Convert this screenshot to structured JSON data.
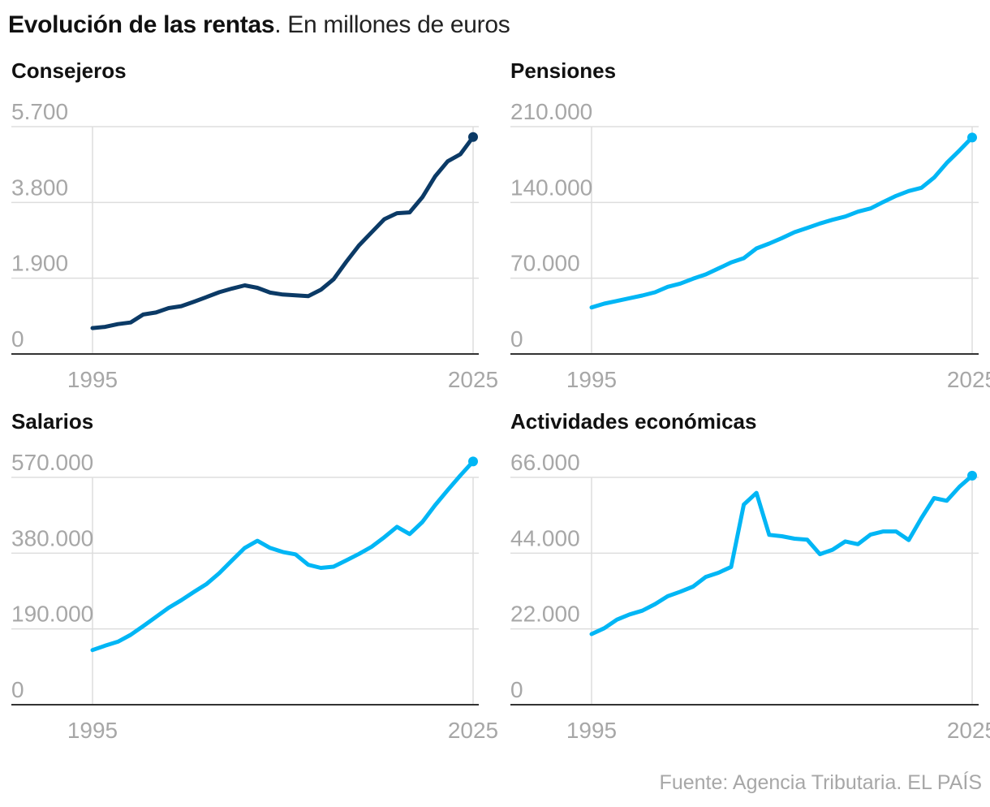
{
  "title": {
    "bold": "Evolución de las rentas",
    "rest": ". En millones de euros"
  },
  "source": "Fuente: Agencia Tributaria. EL PAÍS",
  "colors": {
    "dark": "#0b3a66",
    "light": "#00b6f5",
    "grid": "#dddddd",
    "axis": "#333333",
    "tick": "#a7a7a7"
  },
  "chart_data": [
    {
      "type": "line",
      "title": "Consejeros",
      "color": "#0b3a66",
      "yticks": [
        "0",
        "1.900",
        "3.800",
        "5.700"
      ],
      "ylim": [
        0,
        5700
      ],
      "xlim": [
        1995,
        2025
      ],
      "xticks": [
        "1995",
        "2025"
      ],
      "x": [
        1995,
        1996,
        1997,
        1998,
        1999,
        2000,
        2001,
        2002,
        2003,
        2004,
        2005,
        2006,
        2007,
        2008,
        2009,
        2010,
        2011,
        2012,
        2013,
        2014,
        2015,
        2016,
        2017,
        2018,
        2019,
        2020,
        2021,
        2022,
        2023,
        2024,
        2025
      ],
      "values": [
        650,
        680,
        750,
        790,
        990,
        1040,
        1150,
        1200,
        1310,
        1430,
        1550,
        1640,
        1720,
        1660,
        1540,
        1490,
        1470,
        1450,
        1610,
        1870,
        2310,
        2720,
        3050,
        3380,
        3530,
        3550,
        3930,
        4450,
        4830,
        5010,
        5440
      ]
    },
    {
      "type": "line",
      "title": "Pensiones",
      "color": "#00b6f5",
      "yticks": [
        "0",
        "70.000",
        "140.000",
        "210.000"
      ],
      "ylim": [
        0,
        210000
      ],
      "xlim": [
        1995,
        2025
      ],
      "xticks": [
        "1995",
        "2025"
      ],
      "x": [
        1995,
        1996,
        1997,
        1998,
        1999,
        2000,
        2001,
        2002,
        2003,
        2004,
        2005,
        2006,
        2007,
        2008,
        2009,
        2010,
        2011,
        2012,
        2013,
        2014,
        2015,
        2016,
        2017,
        2018,
        2019,
        2020,
        2021,
        2022,
        2023,
        2024,
        2025
      ],
      "values": [
        43000,
        46500,
        49000,
        51500,
        54000,
        57000,
        62000,
        65000,
        69500,
        73500,
        79000,
        84500,
        88500,
        97500,
        102000,
        107000,
        112500,
        116500,
        120500,
        124000,
        127000,
        131500,
        134500,
        140500,
        146000,
        150500,
        153500,
        163000,
        176500,
        188000,
        200000
      ]
    },
    {
      "type": "line",
      "title": "Salarios",
      "color": "#00b6f5",
      "yticks": [
        "0",
        "190.000",
        "380.000",
        "570.000"
      ],
      "ylim": [
        0,
        570000
      ],
      "xlim": [
        1995,
        2025
      ],
      "xticks": [
        "1995",
        "2025"
      ],
      "x": [
        1995,
        1996,
        1997,
        1998,
        1999,
        2000,
        2001,
        2002,
        2003,
        2004,
        2005,
        2006,
        2007,
        2008,
        2009,
        2010,
        2011,
        2012,
        2013,
        2014,
        2015,
        2016,
        2017,
        2018,
        2019,
        2020,
        2021,
        2022,
        2023,
        2024,
        2025
      ],
      "values": [
        137000,
        148000,
        158000,
        175000,
        197000,
        220000,
        243000,
        262000,
        283000,
        303000,
        330000,
        362000,
        393000,
        411000,
        393000,
        383000,
        377000,
        351000,
        343000,
        346000,
        362000,
        378000,
        396000,
        420000,
        446000,
        428000,
        458000,
        500000,
        538000,
        575000,
        610000
      ]
    },
    {
      "type": "line",
      "title": "Actividades económicas",
      "color": "#00b6f5",
      "yticks": [
        "0",
        "22.000",
        "44.000",
        "66.000"
      ],
      "ylim": [
        0,
        66000
      ],
      "xlim": [
        1995,
        2025
      ],
      "xticks": [
        "1995",
        "2025"
      ],
      "x": [
        1995,
        1996,
        1997,
        1998,
        1999,
        2000,
        2001,
        2002,
        2003,
        2004,
        2005,
        2006,
        2007,
        2008,
        2009,
        2010,
        2011,
        2012,
        2013,
        2014,
        2015,
        2016,
        2017,
        2018,
        2019,
        2020,
        2021,
        2022,
        2023,
        2024,
        2025
      ],
      "values": [
        20500,
        22200,
        24700,
        26200,
        27300,
        29200,
        31500,
        32800,
        34300,
        37100,
        38300,
        40000,
        58100,
        61500,
        49300,
        48900,
        48200,
        47900,
        43700,
        45000,
        47400,
        46600,
        49400,
        50300,
        50300,
        47800,
        54200,
        60000,
        59200,
        63300,
        66500
      ]
    }
  ]
}
